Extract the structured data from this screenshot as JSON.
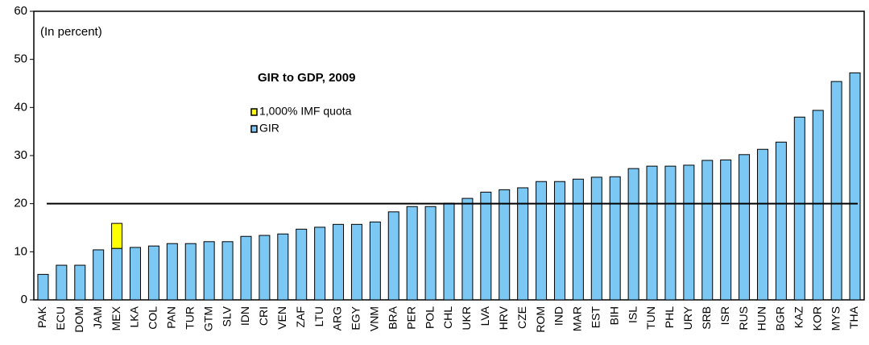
{
  "chart_data": {
    "type": "bar",
    "stacked": true,
    "title": "GIR to GDP, 2009",
    "annotation": "(In percent)",
    "categories": [
      "PAK",
      "ECU",
      "DOM",
      "JAM",
      "MEX",
      "LKA",
      "COL",
      "PAN",
      "TUR",
      "GTM",
      "SLV",
      "IDN",
      "CRI",
      "VEN",
      "ZAF",
      "LTU",
      "ARG",
      "EGY",
      "VNM",
      "BRA",
      "PER",
      "POL",
      "CHL",
      "UKR",
      "LVA",
      "HRV",
      "CZE",
      "ROM",
      "IND",
      "MAR",
      "EST",
      "BIH",
      "ISL",
      "TUN",
      "PHL",
      "URY",
      "SRB",
      "ISR",
      "RUS",
      "HUN",
      "BGR",
      "KAZ",
      "KOR",
      "MYS",
      "THA"
    ],
    "series": [
      {
        "name": "GIR",
        "color": "#7cc8f4",
        "values": [
          5.3,
          7.2,
          7.2,
          10.4,
          10.7,
          10.9,
          11.2,
          11.7,
          11.7,
          12.1,
          12.1,
          13.2,
          13.4,
          13.7,
          14.7,
          15.1,
          15.7,
          15.7,
          16.2,
          18.3,
          19.4,
          19.4,
          20.1,
          21.1,
          22.4,
          22.9,
          23.3,
          24.6,
          24.6,
          25.1,
          25.5,
          25.6,
          27.3,
          27.8,
          27.8,
          28.0,
          29.0,
          29.1,
          30.2,
          31.3,
          32.8,
          38.0,
          39.4,
          45.4,
          47.2
        ]
      },
      {
        "name": "1,000% IMF quota",
        "color": "#ffff00",
        "values": [
          null,
          null,
          null,
          null,
          5.2,
          null,
          null,
          null,
          null,
          null,
          null,
          null,
          null,
          null,
          null,
          null,
          null,
          null,
          null,
          null,
          null,
          null,
          null,
          null,
          null,
          null,
          null,
          null,
          null,
          null,
          null,
          null,
          null,
          null,
          null,
          null,
          null,
          null,
          null,
          null,
          null,
          null,
          null,
          null,
          null
        ]
      }
    ],
    "reference_line": 20,
    "ylim": [
      0,
      60
    ],
    "yticks": [
      0,
      10,
      20,
      30,
      40,
      50,
      60
    ],
    "grid": false
  }
}
